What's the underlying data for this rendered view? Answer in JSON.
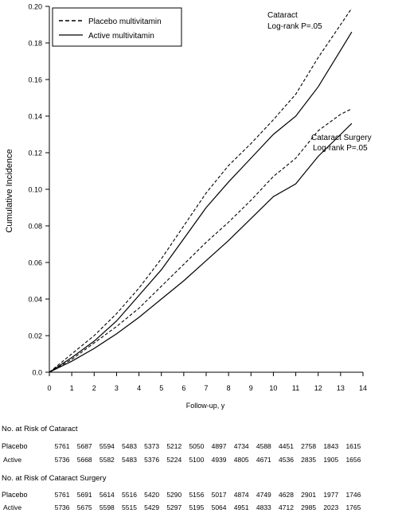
{
  "chart_data": {
    "type": "line",
    "xlabel": "Follow-up, y",
    "ylabel": "Cumulative Incidence",
    "xlim": [
      0,
      14
    ],
    "ylim": [
      0,
      0.2
    ],
    "xticks": [
      "0",
      "1",
      "2",
      "3",
      "4",
      "5",
      "6",
      "7",
      "8",
      "9",
      "10",
      "11",
      "12",
      "13",
      "14"
    ],
    "yticks": [
      "0.0",
      "0.02",
      "0.04",
      "0.06",
      "0.08",
      "0.10",
      "0.12",
      "0.14",
      "0.16",
      "0.18",
      "0.20"
    ],
    "grid": false,
    "legend_position": "top-left",
    "legend": [
      {
        "label": "Placebo multivitamin",
        "style": "dashed"
      },
      {
        "label": "Active multivitamin",
        "style": "solid"
      }
    ],
    "annotations": {
      "cataract": [
        "Cataract",
        "Log-rank P=.05"
      ],
      "surgery": [
        "Cataract Surgery",
        "Log-rank P=.05"
      ]
    },
    "series": [
      {
        "group": "Cataract",
        "arm": "Placebo multivitamin",
        "style": "dashed",
        "x": [
          0,
          1,
          2,
          3,
          4,
          5,
          6,
          7,
          8,
          9,
          10,
          11,
          12,
          13,
          13.5
        ],
        "y": [
          0,
          0.01,
          0.02,
          0.032,
          0.046,
          0.062,
          0.08,
          0.098,
          0.113,
          0.125,
          0.138,
          0.152,
          0.172,
          0.19,
          0.199
        ]
      },
      {
        "group": "Cataract",
        "arm": "Active multivitamin",
        "style": "solid",
        "x": [
          0,
          1,
          2,
          3,
          4,
          5,
          6,
          7,
          8,
          9,
          10,
          11,
          12,
          13,
          13.5
        ],
        "y": [
          0,
          0.008,
          0.017,
          0.028,
          0.042,
          0.056,
          0.073,
          0.09,
          0.104,
          0.117,
          0.13,
          0.14,
          0.156,
          0.176,
          0.186
        ]
      },
      {
        "group": "Cataract Surgery",
        "arm": "Placebo multivitamin",
        "style": "dashed",
        "x": [
          0,
          1,
          2,
          3,
          4,
          5,
          6,
          7,
          8,
          9,
          10,
          11,
          12,
          13,
          13.5
        ],
        "y": [
          0,
          0.007,
          0.016,
          0.025,
          0.035,
          0.047,
          0.059,
          0.071,
          0.082,
          0.094,
          0.107,
          0.117,
          0.132,
          0.141,
          0.144
        ]
      },
      {
        "group": "Cataract Surgery",
        "arm": "Active multivitamin",
        "style": "solid",
        "x": [
          0,
          1,
          2,
          3,
          4,
          5,
          6,
          7,
          8,
          9,
          10,
          11,
          12,
          13,
          13.5
        ],
        "y": [
          0,
          0.006,
          0.013,
          0.021,
          0.03,
          0.04,
          0.05,
          0.061,
          0.072,
          0.084,
          0.096,
          0.103,
          0.118,
          0.13,
          0.136
        ]
      }
    ]
  },
  "risk_tables": [
    {
      "title": "No. at Risk of Cataract",
      "rows": [
        {
          "label": "Placebo",
          "values": [
            "5761",
            "5687",
            "5594",
            "5483",
            "5373",
            "5212",
            "5050",
            "4897",
            "4734",
            "4588",
            "4451",
            "2758",
            "1843",
            "1615"
          ]
        },
        {
          "label": "Active",
          "values": [
            "5736",
            "5668",
            "5582",
            "5483",
            "5376",
            "5224",
            "5100",
            "4939",
            "4805",
            "4671",
            "4536",
            "2835",
            "1905",
            "1656"
          ]
        }
      ]
    },
    {
      "title": "No. at Risk of Cataract Surgery",
      "rows": [
        {
          "label": "Placebo",
          "values": [
            "5761",
            "5691",
            "5614",
            "5516",
            "5420",
            "5290",
            "5156",
            "5017",
            "4874",
            "4749",
            "4628",
            "2901",
            "1977",
            "1746"
          ]
        },
        {
          "label": "Active",
          "values": [
            "5736",
            "5675",
            "5598",
            "5515",
            "5429",
            "5297",
            "5195",
            "5064",
            "4951",
            "4833",
            "4712",
            "2985",
            "2023",
            "1765"
          ]
        }
      ]
    }
  ]
}
